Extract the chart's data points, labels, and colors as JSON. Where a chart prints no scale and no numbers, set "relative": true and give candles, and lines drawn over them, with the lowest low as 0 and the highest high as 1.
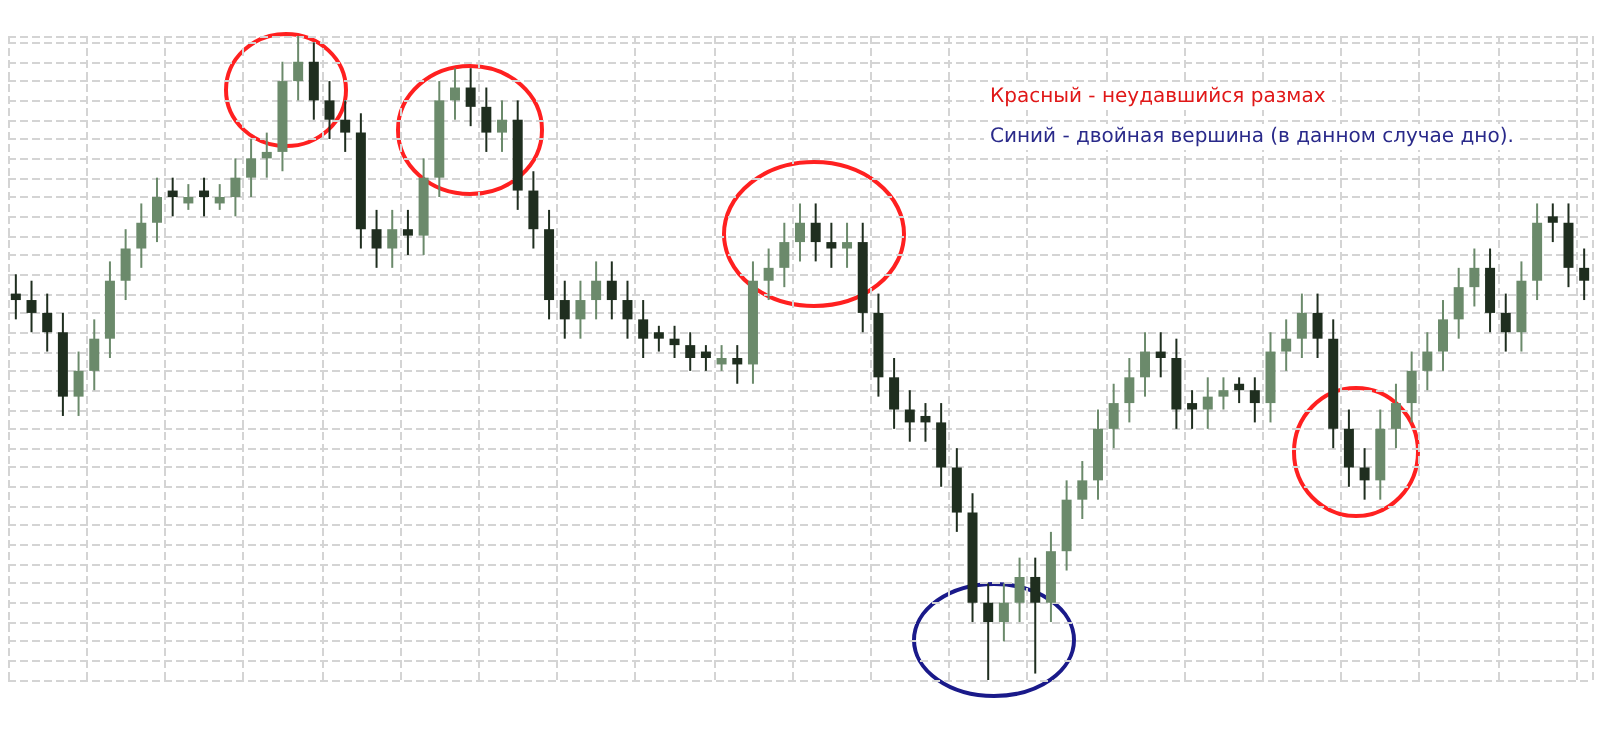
{
  "chart_data": {
    "type": "candlestick",
    "relative": true,
    "grid": true,
    "annotations": [
      "Красный - неудавшийся размах",
      "Синий - двойная вершина (в данном случае дно)."
    ],
    "categories": [
      null,
      null,
      null,
      null,
      null,
      null,
      null,
      null,
      null,
      null,
      null,
      null,
      null,
      null,
      null,
      null,
      null,
      null,
      null,
      null,
      null,
      null,
      null,
      null,
      null,
      null,
      null,
      null,
      null,
      null,
      null,
      null,
      null,
      null,
      null,
      null,
      null,
      null,
      null,
      null,
      null,
      null,
      null,
      null,
      null,
      null,
      null,
      null,
      null,
      null,
      null,
      null,
      null,
      null,
      null,
      null,
      null,
      null,
      null,
      null,
      null,
      null,
      null,
      null,
      null,
      null,
      null,
      null,
      null,
      null,
      null,
      null,
      null,
      null,
      null,
      null,
      null,
      null,
      null,
      null,
      null,
      null,
      null,
      null,
      null,
      null,
      null,
      null,
      null,
      null,
      null,
      null,
      null,
      null,
      null,
      null,
      null,
      null,
      null,
      null,
      null
    ],
    "series": [
      {
        "colors": [
          "#1f2e1f",
          "#1f2e1f",
          "#1f2e1f",
          "#1f2e1f",
          "#6b8a6b",
          "#6b8a6b",
          "#6b8a6b",
          "#6b8a6b",
          "#6b8a6b",
          "#6b8a6b",
          "#1f2e1f",
          "#6b8a6b",
          "#1f2e1f",
          "#6b8a6b",
          "#6b8a6b",
          "#6b8a6b",
          "#6b8a6b",
          "#6b8a6b",
          "#6b8a6b",
          "#1f2e1f",
          "#1f2e1f",
          "#1f2e1f",
          "#1f2e1f",
          "#1f2e1f",
          "#6b8a6b",
          "#1f2e1f",
          "#6b8a6b",
          "#6b8a6b",
          "#6b8a6b",
          "#1f2e1f",
          "#1f2e1f",
          "#6b8a6b",
          "#1f2e1f",
          "#1f2e1f",
          "#1f2e1f",
          "#1f2e1f",
          "#6b8a6b",
          "#6b8a6b",
          "#1f2e1f",
          "#1f2e1f",
          "#1f2e1f",
          "#1f2e1f",
          "#1f2e1f",
          "#1f2e1f",
          "#1f2e1f",
          "#6b8a6b",
          "#1f2e1f",
          "#6b8a6b",
          "#6b8a6b",
          "#6b8a6b",
          "#6b8a6b",
          "#1f2e1f",
          "#1f2e1f",
          "#6b8a6b",
          "#1f2e1f",
          "#1f2e1f",
          "#1f2e1f",
          "#1f2e1f",
          "#1f2e1f",
          "#1f2e1f",
          "#1f2e1f",
          "#1f2e1f",
          "#1f2e1f",
          "#6b8a6b",
          "#6b8a6b",
          "#1f2e1f",
          "#6b8a6b",
          "#6b8a6b",
          "#6b8a6b",
          "#6b8a6b",
          "#6b8a6b",
          "#6b8a6b",
          "#6b8a6b",
          "#1f2e1f",
          "#1f2e1f",
          "#1f2e1f",
          "#6b8a6b",
          "#6b8a6b",
          "#1f2e1f",
          "#1f2e1f",
          "#6b8a6b",
          "#6b8a6b",
          "#6b8a6b",
          "#1f2e1f",
          "#1f2e1f",
          "#1f2e1f",
          "#1f2e1f",
          "#6b8a6b",
          "#6b8a6b",
          "#6b8a6b",
          "#6b8a6b",
          "#6b8a6b",
          "#6b8a6b",
          "#6b8a6b",
          "#1f2e1f",
          "#1f2e1f",
          "#6b8a6b",
          "#6b8a6b",
          "#1f2e1f",
          "#1f2e1f",
          "#1f2e1f"
        ],
        "ohlc": [
          [
            0.6,
            0.63,
            0.56,
            0.59
          ],
          [
            0.59,
            0.62,
            0.54,
            0.57
          ],
          [
            0.57,
            0.6,
            0.51,
            0.54
          ],
          [
            0.54,
            0.57,
            0.41,
            0.44
          ],
          [
            0.44,
            0.51,
            0.41,
            0.48
          ],
          [
            0.48,
            0.56,
            0.45,
            0.53
          ],
          [
            0.53,
            0.65,
            0.5,
            0.62
          ],
          [
            0.62,
            0.7,
            0.59,
            0.67
          ],
          [
            0.67,
            0.74,
            0.64,
            0.71
          ],
          [
            0.71,
            0.78,
            0.68,
            0.75
          ],
          [
            0.76,
            0.78,
            0.72,
            0.75
          ],
          [
            0.74,
            0.77,
            0.73,
            0.75
          ],
          [
            0.76,
            0.78,
            0.72,
            0.75
          ],
          [
            0.74,
            0.77,
            0.73,
            0.75
          ],
          [
            0.75,
            0.81,
            0.72,
            0.78
          ],
          [
            0.78,
            0.84,
            0.75,
            0.81
          ],
          [
            0.81,
            0.85,
            0.78,
            0.82
          ],
          [
            0.82,
            0.96,
            0.79,
            0.93
          ],
          [
            0.93,
            1,
            0.9,
            0.96
          ],
          [
            0.96,
            0.99,
            0.87,
            0.9
          ],
          [
            0.9,
            0.93,
            0.84,
            0.87
          ],
          [
            0.87,
            0.9,
            0.82,
            0.85
          ],
          [
            0.85,
            0.88,
            0.67,
            0.7
          ],
          [
            0.7,
            0.73,
            0.64,
            0.67
          ],
          [
            0.67,
            0.73,
            0.64,
            0.7
          ],
          [
            0.7,
            0.73,
            0.66,
            0.69
          ],
          [
            0.69,
            0.81,
            0.66,
            0.78
          ],
          [
            0.78,
            0.93,
            0.75,
            0.9
          ],
          [
            0.9,
            0.95,
            0.87,
            0.92
          ],
          [
            0.92,
            0.95,
            0.86,
            0.89
          ],
          [
            0.89,
            0.92,
            0.82,
            0.85
          ],
          [
            0.85,
            0.9,
            0.82,
            0.87
          ],
          [
            0.87,
            0.9,
            0.73,
            0.76
          ],
          [
            0.76,
            0.79,
            0.67,
            0.7
          ],
          [
            0.7,
            0.73,
            0.56,
            0.59
          ],
          [
            0.59,
            0.62,
            0.53,
            0.56
          ],
          [
            0.56,
            0.62,
            0.53,
            0.59
          ],
          [
            0.59,
            0.65,
            0.56,
            0.62
          ],
          [
            0.62,
            0.65,
            0.56,
            0.59
          ],
          [
            0.59,
            0.62,
            0.53,
            0.56
          ],
          [
            0.56,
            0.59,
            0.5,
            0.53
          ],
          [
            0.54,
            0.55,
            0.51,
            0.53
          ],
          [
            0.53,
            0.55,
            0.5,
            0.52
          ],
          [
            0.52,
            0.54,
            0.48,
            0.5
          ],
          [
            0.51,
            0.52,
            0.48,
            0.5
          ],
          [
            0.49,
            0.52,
            0.48,
            0.5
          ],
          [
            0.5,
            0.52,
            0.46,
            0.49
          ],
          [
            0.49,
            0.65,
            0.46,
            0.62
          ],
          [
            0.62,
            0.67,
            0.59,
            0.64
          ],
          [
            0.64,
            0.71,
            0.61,
            0.68
          ],
          [
            0.68,
            0.74,
            0.65,
            0.71
          ],
          [
            0.71,
            0.74,
            0.65,
            0.68
          ],
          [
            0.68,
            0.71,
            0.64,
            0.67
          ],
          [
            0.67,
            0.71,
            0.64,
            0.68
          ],
          [
            0.68,
            0.71,
            0.54,
            0.57
          ],
          [
            0.57,
            0.6,
            0.44,
            0.47
          ],
          [
            0.47,
            0.5,
            0.39,
            0.42
          ],
          [
            0.42,
            0.45,
            0.37,
            0.4
          ],
          [
            0.41,
            0.43,
            0.37,
            0.4
          ],
          [
            0.4,
            0.43,
            0.3,
            0.33
          ],
          [
            0.33,
            0.36,
            0.23,
            0.26
          ],
          [
            0.26,
            0.29,
            0.09,
            0.12
          ],
          [
            0.12,
            0.15,
            0,
            0.09
          ],
          [
            0.09,
            0.15,
            0.06,
            0.12
          ],
          [
            0.12,
            0.19,
            0.09,
            0.16
          ],
          [
            0.16,
            0.19,
            0.01,
            0.12
          ],
          [
            0.12,
            0.23,
            0.09,
            0.2
          ],
          [
            0.2,
            0.31,
            0.17,
            0.28
          ],
          [
            0.28,
            0.34,
            0.25,
            0.31
          ],
          [
            0.31,
            0.42,
            0.28,
            0.39
          ],
          [
            0.39,
            0.46,
            0.36,
            0.43
          ],
          [
            0.43,
            0.5,
            0.4,
            0.47
          ],
          [
            0.47,
            0.54,
            0.44,
            0.51
          ],
          [
            0.51,
            0.54,
            0.47,
            0.5
          ],
          [
            0.5,
            0.53,
            0.39,
            0.42
          ],
          [
            0.43,
            0.45,
            0.39,
            0.42
          ],
          [
            0.42,
            0.47,
            0.39,
            0.44
          ],
          [
            0.44,
            0.47,
            0.42,
            0.45
          ],
          [
            0.46,
            0.47,
            0.43,
            0.45
          ],
          [
            0.45,
            0.47,
            0.4,
            0.43
          ],
          [
            0.43,
            0.54,
            0.4,
            0.51
          ],
          [
            0.51,
            0.56,
            0.48,
            0.53
          ],
          [
            0.53,
            0.6,
            0.5,
            0.57
          ],
          [
            0.57,
            0.6,
            0.5,
            0.53
          ],
          [
            0.53,
            0.56,
            0.36,
            0.39
          ],
          [
            0.39,
            0.42,
            0.3,
            0.33
          ],
          [
            0.33,
            0.36,
            0.28,
            0.31
          ],
          [
            0.31,
            0.42,
            0.28,
            0.39
          ],
          [
            0.39,
            0.46,
            0.36,
            0.43
          ],
          [
            0.43,
            0.51,
            0.4,
            0.48
          ],
          [
            0.48,
            0.54,
            0.45,
            0.51
          ],
          [
            0.51,
            0.59,
            0.48,
            0.56
          ],
          [
            0.56,
            0.64,
            0.53,
            0.61
          ],
          [
            0.61,
            0.67,
            0.58,
            0.64
          ],
          [
            0.64,
            0.67,
            0.54,
            0.57
          ],
          [
            0.57,
            0.6,
            0.51,
            0.54
          ],
          [
            0.54,
            0.65,
            0.51,
            0.62
          ],
          [
            0.62,
            0.74,
            0.59,
            0.71
          ],
          [
            0.72,
            0.74,
            0.68,
            0.71
          ],
          [
            0.71,
            0.74,
            0.61,
            0.64
          ],
          [
            0.64,
            0.67,
            0.59,
            0.62
          ]
        ]
      }
    ]
  }
}
